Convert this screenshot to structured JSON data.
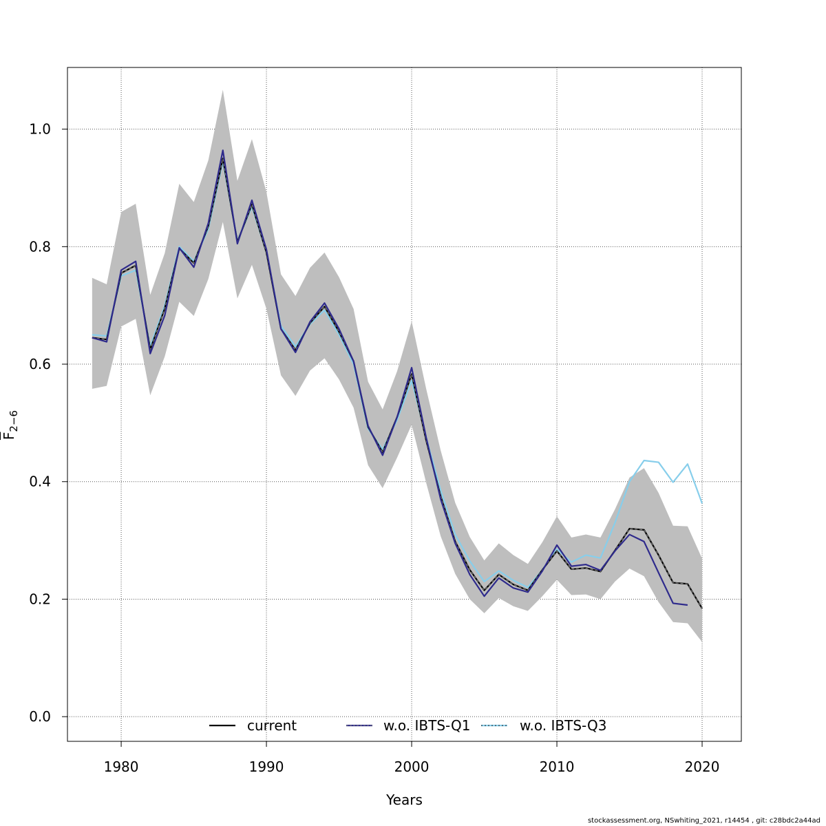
{
  "chart_data": {
    "type": "line",
    "xlabel": "Years",
    "ylabel": "F̅ 2−6",
    "ylabel_main": "F",
    "ylabel_sub": "2−6",
    "xlim": [
      1976.3,
      2022.7
    ],
    "ylim": [
      -0.042,
      1.105
    ],
    "x_ticks": [
      1980,
      1990,
      2000,
      2010,
      2020
    ],
    "x_tick_labels": [
      "1980",
      "1990",
      "2000",
      "2010",
      "2020"
    ],
    "y_ticks": [
      0.0,
      0.2,
      0.4,
      0.6,
      0.8,
      1.0
    ],
    "y_tick_labels": [
      "0.0",
      "0.2",
      "0.4",
      "0.6",
      "0.8",
      "1.0"
    ],
    "grid": true,
    "legend_position": "bottom",
    "confidence_band": {
      "x": [
        1978,
        1979,
        1980,
        1981,
        1982,
        1983,
        1984,
        1985,
        1986,
        1987,
        1988,
        1989,
        1990,
        1991,
        1992,
        1993,
        1994,
        1995,
        1996,
        1997,
        1998,
        1999,
        2000,
        2001,
        2002,
        2003,
        2004,
        2005,
        2006,
        2007,
        2008,
        2009,
        2010,
        2011,
        2012,
        2013,
        2014,
        2015,
        2016,
        2017,
        2018,
        2019,
        2020
      ],
      "upper": [
        0.747,
        0.736,
        0.859,
        0.873,
        0.718,
        0.789,
        0.907,
        0.876,
        0.947,
        1.067,
        0.912,
        0.983,
        0.893,
        0.753,
        0.716,
        0.764,
        0.79,
        0.748,
        0.694,
        0.57,
        0.523,
        0.588,
        0.673,
        0.558,
        0.453,
        0.364,
        0.306,
        0.266,
        0.295,
        0.275,
        0.26,
        0.297,
        0.341,
        0.305,
        0.31,
        0.305,
        0.353,
        0.407,
        0.423,
        0.381,
        0.325,
        0.324,
        0.269
      ],
      "lower": [
        0.558,
        0.563,
        0.664,
        0.677,
        0.547,
        0.613,
        0.706,
        0.682,
        0.745,
        0.842,
        0.712,
        0.769,
        0.694,
        0.581,
        0.546,
        0.589,
        0.61,
        0.574,
        0.526,
        0.428,
        0.389,
        0.441,
        0.497,
        0.398,
        0.307,
        0.243,
        0.2,
        0.176,
        0.202,
        0.188,
        0.18,
        0.205,
        0.233,
        0.207,
        0.208,
        0.2,
        0.23,
        0.252,
        0.239,
        0.195,
        0.161,
        0.159,
        0.127
      ],
      "color": "#bebebe"
    },
    "series": [
      {
        "name": "current",
        "color": "#000000",
        "x": [
          1978,
          1979,
          1980,
          1981,
          1982,
          1983,
          1984,
          1985,
          1986,
          1987,
          1988,
          1989,
          1990,
          1991,
          1992,
          1993,
          1994,
          1995,
          1996,
          1997,
          1998,
          1999,
          2000,
          2001,
          2002,
          2003,
          2004,
          2005,
          2006,
          2007,
          2008,
          2009,
          2010,
          2011,
          2012,
          2013,
          2014,
          2015,
          2016,
          2017,
          2018,
          2019,
          2020
        ],
        "values": [
          0.645,
          0.642,
          0.755,
          0.768,
          0.625,
          0.695,
          0.797,
          0.772,
          0.835,
          0.95,
          0.808,
          0.872,
          0.79,
          0.66,
          0.624,
          0.67,
          0.698,
          0.655,
          0.605,
          0.493,
          0.45,
          0.51,
          0.583,
          0.47,
          0.375,
          0.298,
          0.25,
          0.215,
          0.242,
          0.225,
          0.215,
          0.25,
          0.282,
          0.251,
          0.253,
          0.247,
          0.283,
          0.32,
          0.318,
          0.275,
          0.228,
          0.226,
          0.184
        ]
      },
      {
        "name": "w.o. IBTS-Q1",
        "color": "#2e2a8c",
        "x": [
          1978,
          1979,
          1980,
          1981,
          1982,
          1983,
          1984,
          1985,
          1986,
          1987,
          1988,
          1989,
          1990,
          1991,
          1992,
          1993,
          1994,
          1995,
          1996,
          1997,
          1998,
          1999,
          2000,
          2001,
          2002,
          2003,
          2004,
          2005,
          2006,
          2007,
          2008,
          2009,
          2010,
          2011,
          2012,
          2013,
          2014,
          2015,
          2016,
          2017,
          2018,
          2019
        ],
        "values": [
          0.645,
          0.638,
          0.76,
          0.775,
          0.618,
          0.683,
          0.798,
          0.765,
          0.84,
          0.964,
          0.805,
          0.879,
          0.795,
          0.66,
          0.62,
          0.672,
          0.704,
          0.66,
          0.605,
          0.495,
          0.445,
          0.51,
          0.594,
          0.475,
          0.37,
          0.295,
          0.242,
          0.205,
          0.236,
          0.219,
          0.212,
          0.248,
          0.292,
          0.256,
          0.259,
          0.249,
          0.282,
          0.31,
          0.298,
          0.245,
          0.193,
          0.19
        ]
      },
      {
        "name": "w.o. IBTS-Q3",
        "color": "#87ceeb",
        "x": [
          1978,
          1979,
          1980,
          1981,
          1982,
          1983,
          1984,
          1985,
          1986,
          1987,
          1988,
          1989,
          1990,
          1991,
          1992,
          1993,
          1994,
          1995,
          1996,
          1997,
          1998,
          1999,
          2000,
          2001,
          2002,
          2003,
          2004,
          2005,
          2006,
          2007,
          2008,
          2009,
          2010,
          2011,
          2012,
          2013,
          2014,
          2015,
          2016,
          2017,
          2018,
          2019,
          2020
        ],
        "values": [
          0.65,
          0.648,
          0.75,
          0.76,
          0.63,
          0.7,
          0.8,
          0.775,
          0.83,
          0.945,
          0.81,
          0.868,
          0.79,
          0.665,
          0.63,
          0.668,
          0.692,
          0.65,
          0.6,
          0.49,
          0.455,
          0.505,
          0.572,
          0.475,
          0.385,
          0.31,
          0.265,
          0.23,
          0.248,
          0.232,
          0.22,
          0.25,
          0.285,
          0.263,
          0.275,
          0.27,
          0.33,
          0.4,
          0.436,
          0.433,
          0.399,
          0.43,
          0.363
        ]
      }
    ]
  },
  "footer_text": "stockassessment.org, NSwhiting_2021, r14454 , git: c28bdc2a44ad"
}
